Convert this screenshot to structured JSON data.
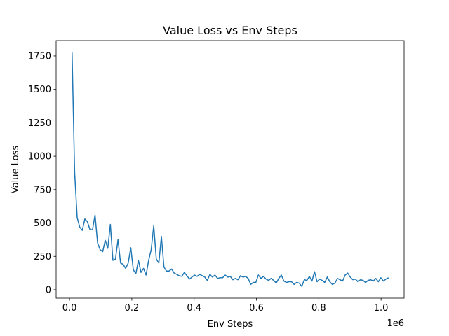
{
  "chart_data": {
    "type": "line",
    "title": "Value Loss vs Env Steps",
    "x_label": "Env Steps",
    "y_label": "Value Loss",
    "x_offset_label": "1e6",
    "x": [
      8192,
      16384,
      24576,
      32768,
      40960,
      49152,
      57344,
      65536,
      73728,
      81920,
      90112,
      98304,
      106496,
      114688,
      122880,
      131072,
      139264,
      147456,
      155648,
      163840,
      172032,
      180224,
      188416,
      196608,
      204800,
      212992,
      221184,
      229376,
      237568,
      245760,
      253952,
      262144,
      270336,
      278528,
      286720,
      294912,
      303104,
      311296,
      319488,
      327680,
      335872,
      344064,
      352256,
      360448,
      368640,
      376832,
      385024,
      393216,
      401408,
      409600,
      417792,
      425984,
      434176,
      442368,
      450560,
      458752,
      466944,
      475136,
      483328,
      491520,
      499712,
      507904,
      516096,
      524288,
      532480,
      540672,
      548864,
      557056,
      565248,
      573440,
      581632,
      589824,
      598016,
      606208,
      614400,
      622592,
      630784,
      638976,
      647168,
      655360,
      663552,
      671744,
      679936,
      688128,
      696320,
      704512,
      712704,
      720896,
      729088,
      737280,
      745472,
      753664,
      761856,
      770048,
      778240,
      786432,
      794624,
      802816,
      811008,
      819200,
      827392,
      835584,
      843776,
      851968,
      860160,
      868352,
      876544,
      884736,
      892928,
      901120,
      909312,
      917504,
      925696,
      933888,
      942080,
      950272,
      958464,
      966656,
      974848,
      983040,
      991232,
      999424,
      1007616,
      1015808,
      1024000
    ],
    "series": [
      {
        "color": "#1f77b4",
        "values": [
          1775,
          880,
          540,
          470,
          445,
          530,
          510,
          450,
          450,
          560,
          350,
          300,
          285,
          370,
          310,
          490,
          220,
          230,
          375,
          200,
          190,
          160,
          200,
          315,
          150,
          120,
          220,
          130,
          160,
          110,
          220,
          300,
          480,
          230,
          200,
          400,
          170,
          140,
          140,
          155,
          125,
          115,
          105,
          100,
          130,
          105,
          80,
          95,
          110,
          100,
          115,
          105,
          95,
          70,
          115,
          95,
          110,
          85,
          90,
          90,
          110,
          95,
          100,
          75,
          85,
          75,
          105,
          95,
          100,
          85,
          40,
          55,
          55,
          110,
          85,
          100,
          80,
          70,
          85,
          70,
          50,
          85,
          110,
          65,
          55,
          60,
          60,
          40,
          55,
          50,
          25,
          75,
          70,
          100,
          65,
          135,
          60,
          80,
          70,
          55,
          95,
          60,
          40,
          50,
          85,
          75,
          65,
          110,
          125,
          95,
          75,
          80,
          60,
          75,
          70,
          55,
          70,
          75,
          65,
          85,
          60,
          90,
          65,
          80,
          90
        ]
      }
    ],
    "xlim": [
      -43000,
      1074000
    ],
    "ylim": [
      -63,
      1865
    ],
    "xticks": [
      {
        "value": 0,
        "label": "0.0"
      },
      {
        "value": 200000,
        "label": "0.2"
      },
      {
        "value": 400000,
        "label": "0.4"
      },
      {
        "value": 600000,
        "label": "0.6"
      },
      {
        "value": 800000,
        "label": "0.8"
      },
      {
        "value": 1000000,
        "label": "1.0"
      }
    ],
    "yticks": [
      0,
      250,
      500,
      750,
      1000,
      1250,
      1500,
      1750
    ]
  }
}
